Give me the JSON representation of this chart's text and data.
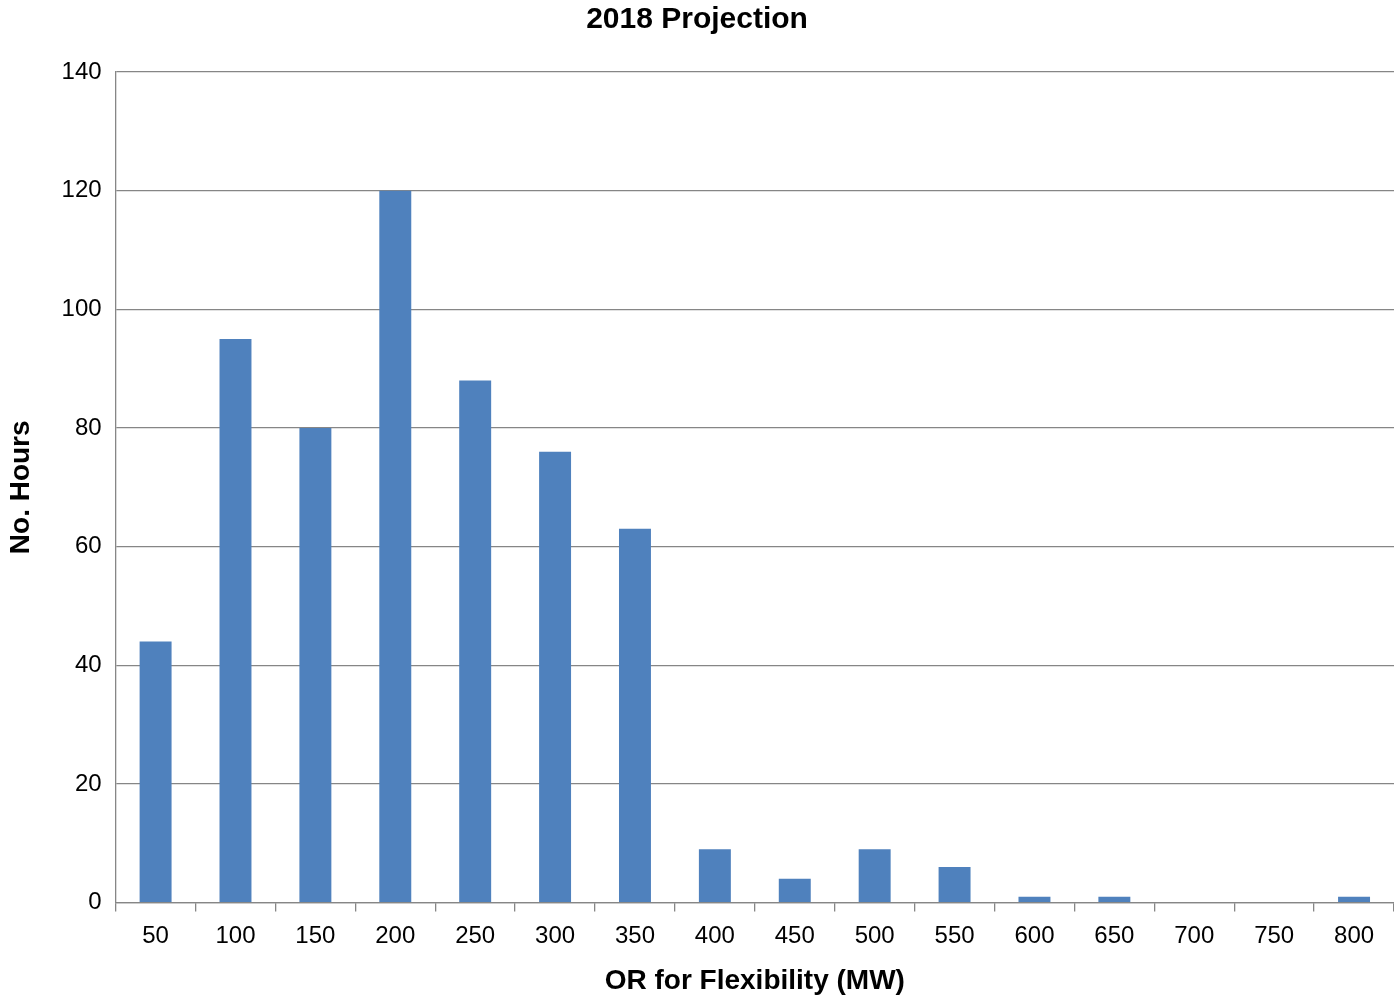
{
  "chart_data": {
    "type": "bar",
    "title": "2018 Projection",
    "xlabel": "OR for Flexibility (MW)",
    "ylabel": "No. Hours",
    "categories": [
      "50",
      "100",
      "150",
      "200",
      "250",
      "300",
      "350",
      "400",
      "450",
      "500",
      "550",
      "600",
      "650",
      "700",
      "750",
      "800"
    ],
    "values": [
      44,
      95,
      80,
      120,
      88,
      76,
      63,
      9,
      4,
      9,
      6,
      1,
      1,
      0,
      0,
      1
    ],
    "color": "#4f81bd",
    "ylim": [
      0,
      140
    ],
    "yticks": [
      0,
      20,
      40,
      60,
      80,
      100,
      120,
      140
    ],
    "grid": "y",
    "legend": false
  }
}
